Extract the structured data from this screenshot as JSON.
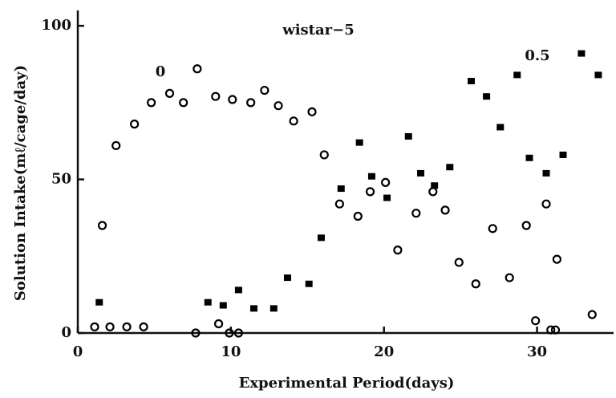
{
  "chart_data": {
    "type": "scatter",
    "title": "wistar−5",
    "x_label": "Experimental Period(days)",
    "y_label": "Solution Intake(mℓ/cage/day)",
    "xlim": [
      0,
      35
    ],
    "ylim": [
      0,
      105
    ],
    "xticks": [
      0,
      10,
      20,
      30
    ],
    "yticks": [
      0,
      50,
      100
    ],
    "grid": false,
    "series": [
      {
        "name": "0",
        "marker": "open-circle",
        "color": "#000000",
        "x": [
          1.1,
          1.6,
          2.5,
          3.7,
          4.8,
          6.0,
          6.9,
          7.8,
          9.0,
          10.1,
          11.3,
          12.2,
          13.1,
          14.1,
          15.3,
          16.1,
          17.1,
          18.3,
          19.1,
          20.1,
          20.9,
          22.1,
          23.2,
          24.0,
          24.9,
          26.0,
          27.1,
          28.2,
          29.3,
          30.6,
          31.3,
          33.6,
          2.1,
          3.2,
          4.3,
          7.7,
          9.9,
          10.5,
          9.2,
          29.9,
          30.9,
          31.2
        ],
        "y": [
          2,
          35,
          61,
          68,
          75,
          78,
          75,
          86,
          77,
          76,
          75,
          79,
          74,
          69,
          72,
          58,
          42,
          38,
          46,
          49,
          27,
          39,
          46,
          40,
          23,
          16,
          34,
          18,
          35,
          42,
          24,
          6,
          2,
          2,
          2,
          0,
          0,
          0,
          3,
          4,
          1,
          1
        ]
      },
      {
        "name": "0.5",
        "marker": "filled-square",
        "color": "#000000",
        "x": [
          1.4,
          8.5,
          9.5,
          10.5,
          11.5,
          12.8,
          13.7,
          15.1,
          15.9,
          17.2,
          18.4,
          19.2,
          20.2,
          21.6,
          22.4,
          23.3,
          24.3,
          25.7,
          26.7,
          27.6,
          28.7,
          29.5,
          30.6,
          31.7,
          32.9,
          34.0
        ],
        "y": [
          10,
          10,
          9,
          14,
          8,
          8,
          18,
          16,
          31,
          47,
          62,
          51,
          44,
          64,
          52,
          48,
          54,
          82,
          77,
          67,
          84,
          57,
          52,
          58,
          91,
          84
        ]
      }
    ]
  }
}
